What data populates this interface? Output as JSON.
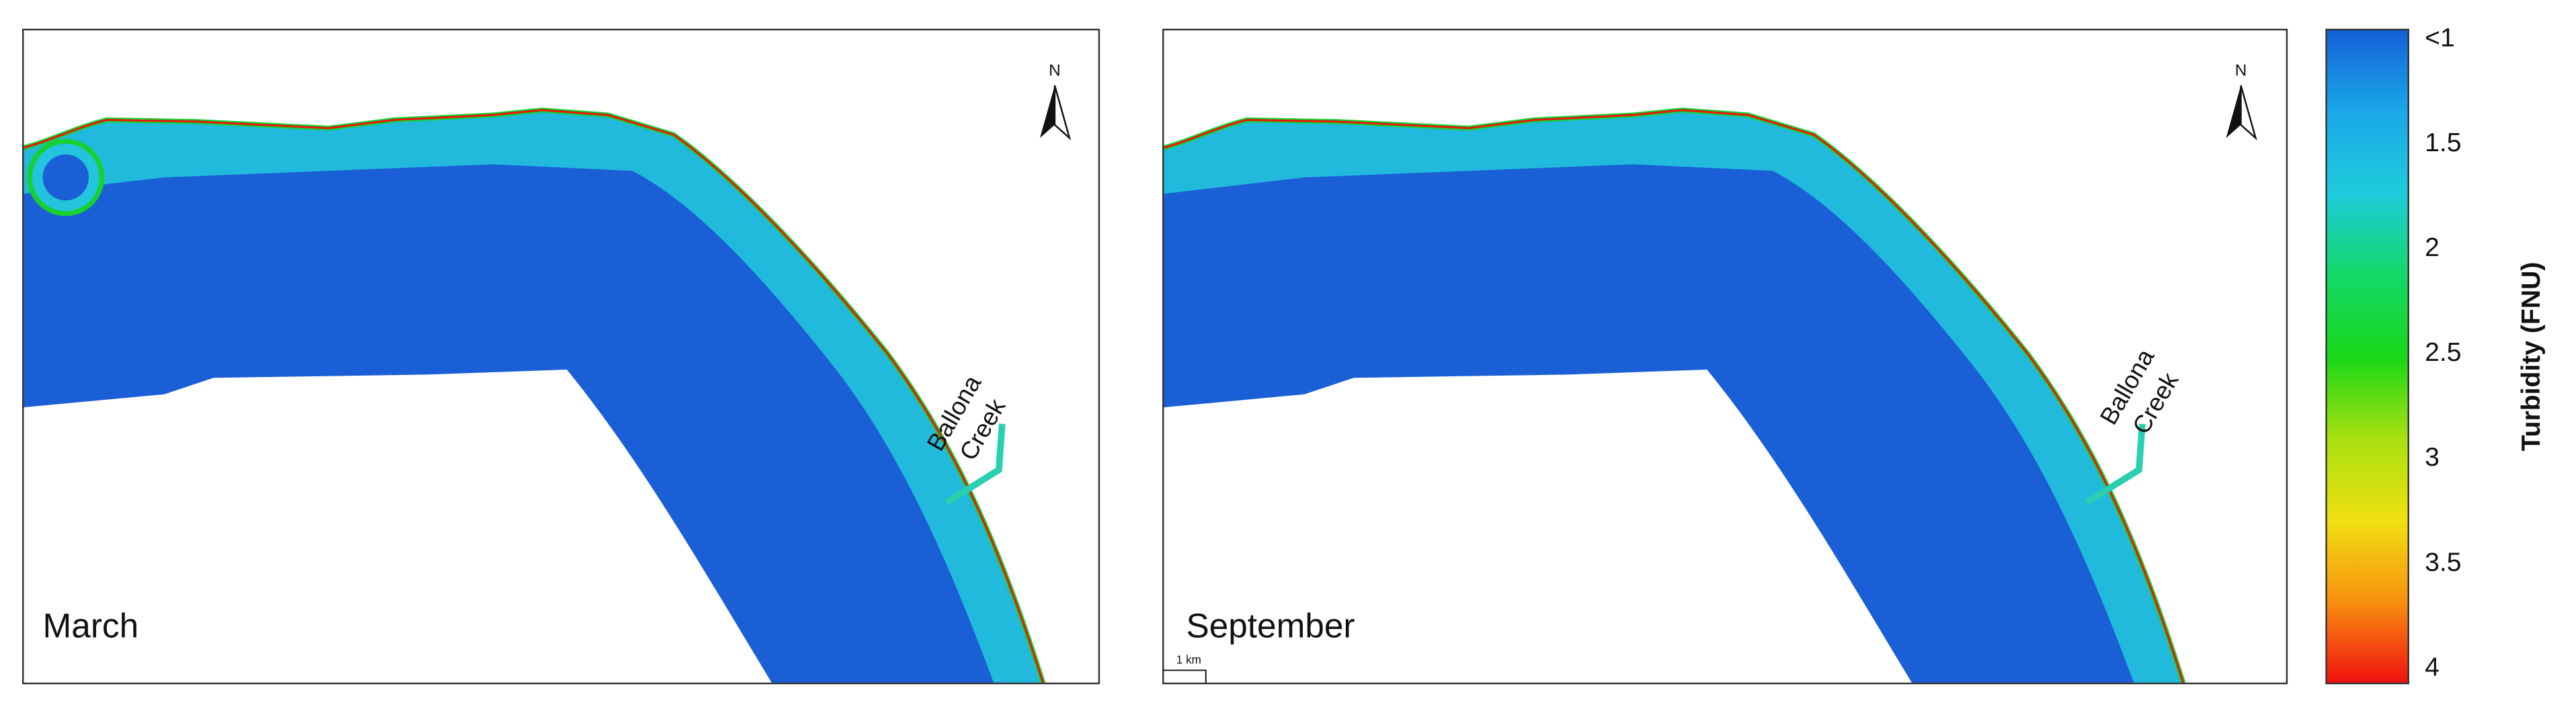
{
  "panels": [
    {
      "label": "March",
      "annotation_lines": [
        "Ballona",
        "Creek"
      ],
      "north": "N"
    },
    {
      "label": "September",
      "annotation_lines": [
        "Ballona",
        "Creek"
      ],
      "north": "N",
      "scale_bar": "1 km"
    }
  ],
  "colorbar": {
    "title": "Turbidity (FNU)",
    "ticks": [
      {
        "value": 1,
        "label": "<1"
      },
      1.5,
      2,
      2.5,
      3,
      3.5,
      4
    ],
    "colors": [
      "#1460d8",
      "#1aa8e8",
      "#1fcbdc",
      "#14d86a",
      "#18d818",
      "#a8e010",
      "#f0e010",
      "#f89010",
      "#f01010"
    ]
  }
}
